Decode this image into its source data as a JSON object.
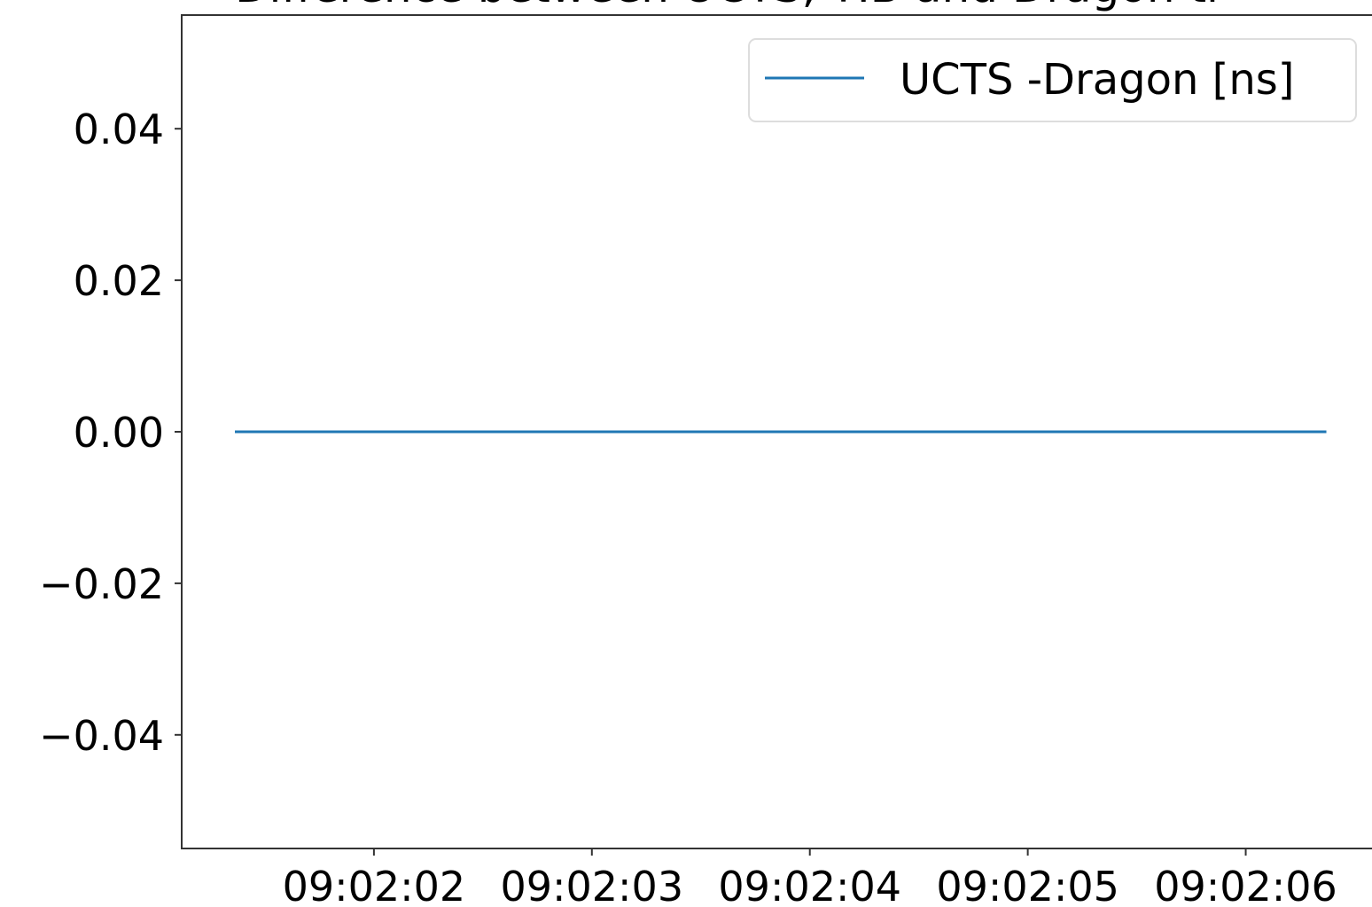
{
  "chart_data": {
    "type": "line",
    "title": "Difference between UCTS, TIB and Dragon ti",
    "x": [
      32521.362,
      32526.37
    ],
    "series": [
      {
        "name": "UCTS -Dragon [ns]",
        "color": "#1f77b4",
        "values": [
          0,
          0
        ]
      }
    ],
    "xlim": [
      32521.118,
      32526.62
    ],
    "xticks": [
      {
        "value": 32522,
        "label": "09:02:02"
      },
      {
        "value": 32523,
        "label": "09:02:03"
      },
      {
        "value": 32524,
        "label": "09:02:04"
      },
      {
        "value": 32525,
        "label": "09:02:05"
      },
      {
        "value": 32526,
        "label": "09:02:06"
      }
    ],
    "ylim": [
      -0.055,
      0.055
    ],
    "yticks": [
      {
        "value": -0.04,
        "label": "−0.04"
      },
      {
        "value": -0.02,
        "label": "−0.02"
      },
      {
        "value": 0,
        "label": "0.00"
      },
      0.02,
      0.04
    ],
    "legend": "upper right",
    "grid": false
  }
}
